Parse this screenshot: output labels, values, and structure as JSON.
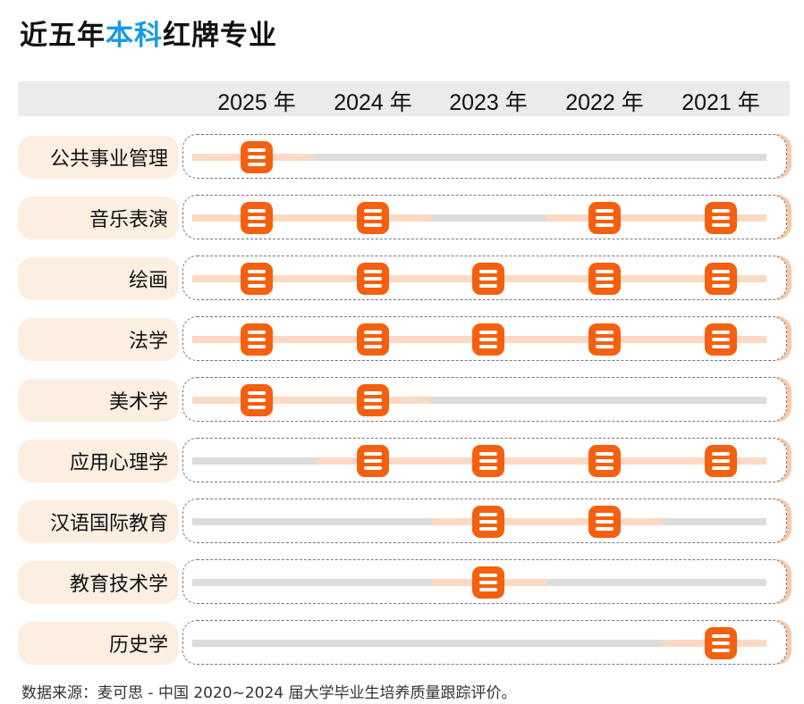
{
  "title": {
    "pre": "近五年",
    "highlight": "本科",
    "post": "红牌专业"
  },
  "colors": {
    "highlight": "#1a9be0",
    "marker": "#f4600f",
    "segment": "#fcd9c2",
    "track": "#dcdcdc"
  },
  "chart_data": {
    "type": "table",
    "columns": [
      "2025 年",
      "2024 年",
      "2023 年",
      "2022 年",
      "2021 年"
    ],
    "rows": [
      {
        "major": "公共事业管理",
        "red": [
          true,
          false,
          false,
          false,
          false
        ]
      },
      {
        "major": "音乐表演",
        "red": [
          true,
          true,
          false,
          true,
          true
        ]
      },
      {
        "major": "绘画",
        "red": [
          true,
          true,
          true,
          true,
          true
        ]
      },
      {
        "major": "法学",
        "red": [
          true,
          true,
          true,
          true,
          true
        ]
      },
      {
        "major": "美术学",
        "red": [
          true,
          true,
          false,
          false,
          false
        ]
      },
      {
        "major": "应用心理学",
        "red": [
          false,
          true,
          true,
          true,
          true
        ]
      },
      {
        "major": "汉语国际教育",
        "red": [
          false,
          false,
          true,
          true,
          false
        ]
      },
      {
        "major": "教育技术学",
        "red": [
          false,
          false,
          true,
          false,
          false
        ]
      },
      {
        "major": "历史学",
        "red": [
          false,
          false,
          false,
          false,
          true
        ]
      }
    ],
    "marker_icon": "list-icon"
  },
  "footer": "数据来源：麦可思 - 中国 2020~2024 届大学毕业生培养质量跟踪评价。"
}
